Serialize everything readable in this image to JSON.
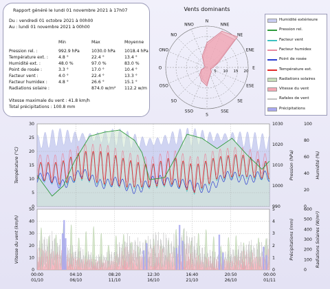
{
  "report": {
    "title": "Rapport généré le lundi 01 novembre 2021 à 17h07",
    "period_from": "Du : vendredi 01 octobre 2021 à 00h00",
    "period_to": "Au : lundi 01 novembre 2021 à 00h00",
    "col_min": "Min",
    "col_max": "Max",
    "col_avg": "Moyenne",
    "rows": [
      {
        "label": "Pression rel. :",
        "min": "992.9 hPa",
        "max": "1030.0 hPa",
        "avg": "1018.4 hPa"
      },
      {
        "label": "Température ext. :",
        "min": "4.8 °",
        "max": "22.4 °",
        "avg": "13.4 °"
      },
      {
        "label": "Humidité ext. :",
        "min": "48.0 %",
        "max": "97.0 %",
        "avg": "83.0 %"
      },
      {
        "label": "Point de rosée :",
        "min": "3.3 °",
        "max": "17.0 °",
        "avg": "10.4 °"
      },
      {
        "label": "Facteur vent :",
        "min": "4.0 °",
        "max": "22.4 °",
        "avg": "13.3 °"
      },
      {
        "label": "Facteur humidex :",
        "min": "4.8 °",
        "max": "26.6 °",
        "avg": "15.1 °"
      },
      {
        "label": "Radiations solaire :",
        "min": "",
        "max": "874.0 w/m²",
        "avg": "112.2 w/m"
      }
    ],
    "vitesse_max": "Vitesse maximale du vent : 41.8 km/h",
    "total_precip": "Total précipitations : 100.8 mm"
  },
  "wind_rose": {
    "title": "Vents dominants",
    "directions": [
      "N",
      "NNE",
      "NE",
      "ENE",
      "E",
      "ESE",
      "SE",
      "SSE",
      "S",
      "SSO",
      "SO",
      "OSO",
      "O",
      "ONO",
      "NO",
      "NNO"
    ],
    "ring_labels": [
      "5",
      "10",
      "15",
      "20"
    ],
    "vitesse_pct": [
      12,
      19,
      21,
      6,
      3,
      2,
      3,
      4,
      9,
      7,
      5,
      3,
      1,
      1,
      2,
      6
    ],
    "rafales_pct": [
      11,
      18,
      19,
      5,
      2,
      2,
      3,
      4,
      8,
      6,
      4,
      3,
      1,
      1,
      2,
      5
    ]
  },
  "legend": [
    {
      "label": "Humidité extérieure",
      "color": "#c8cdf0",
      "style": "fill"
    },
    {
      "label": "Pression rel.",
      "color": "#2e9a3c",
      "style": "line"
    },
    {
      "label": "Facteur vent",
      "color": "#3cc0c0",
      "style": "line"
    },
    {
      "label": "Facteur humidex",
      "color": "#e88aa0",
      "style": "line"
    },
    {
      "label": "Point de rosée",
      "color": "#2a3ccf",
      "style": "line"
    },
    {
      "label": "Température ext.",
      "color": "#e02828",
      "style": "line"
    },
    {
      "label": "Radiations solaires",
      "color": "#c6ddb8",
      "style": "fill"
    },
    {
      "label": "Vitesse du vent",
      "color": "#f4a8b4",
      "style": "fill"
    },
    {
      "label": "Rafales de vent",
      "color": "#c0c0c0",
      "style": "line"
    },
    {
      "label": "Précipitations",
      "color": "#a8a8f0",
      "style": "fill"
    }
  ],
  "chart_data": [
    {
      "type": "line",
      "title": "",
      "xlabel": "",
      "ylabel": "Température (°C)",
      "y2label": "Pression (hPa)",
      "y3label": "Humidité (%)",
      "ylim": [
        0,
        30
      ],
      "y2lim": [
        990,
        1030
      ],
      "y3lim": [
        0,
        100
      ],
      "yticks": [
        "0",
        "5",
        "10",
        "15",
        "20",
        "25",
        "30"
      ],
      "y2ticks": [
        "990",
        "1000",
        "1010",
        "1020",
        "1030"
      ],
      "y3ticks": [
        "0",
        "20",
        "40",
        "60",
        "80",
        "100"
      ],
      "x_tick_labels": [
        [
          "00:00",
          "01/10"
        ],
        [
          "04:10",
          "06/10"
        ],
        [
          "08:20",
          "11/10"
        ],
        [
          "12:30",
          "16/10"
        ],
        [
          "16:40",
          "21/10"
        ],
        [
          "20:50",
          "26/10"
        ],
        [
          "00:00",
          "01/11"
        ]
      ],
      "x_days": [
        0,
        31
      ],
      "pressure_daily": {
        "x": [
          0,
          2,
          3.5,
          5,
          7,
          9,
          11,
          13,
          14,
          15,
          17,
          18.5,
          20,
          22,
          24,
          26,
          28,
          30,
          31
        ],
        "values": [
          1005,
          995,
          1000,
          1012,
          1024,
          1026,
          1027,
          1022,
          1016,
          1003,
          1004,
          1014,
          1025,
          1023,
          1018,
          1023,
          1015,
          1008,
          1012
        ]
      },
      "temperature_daily": {
        "x": [
          0,
          3,
          6,
          9,
          12,
          15,
          18,
          21,
          24,
          27,
          31
        ],
        "mean": [
          13,
          12,
          15,
          14,
          12,
          11,
          13,
          10,
          14,
          15,
          13
        ],
        "amplitude": [
          3,
          4,
          5,
          6,
          5,
          4,
          5,
          5,
          4,
          4,
          3
        ]
      },
      "dewpoint_daily": {
        "x": [
          0,
          3,
          6,
          9,
          12,
          15,
          18,
          21,
          24,
          27,
          31
        ],
        "mean": [
          10,
          9,
          11,
          9,
          7,
          8,
          10,
          6,
          9,
          11,
          10
        ]
      },
      "humidity_range": [
        48,
        97
      ]
    },
    {
      "type": "bar",
      "title": "",
      "xlabel": "",
      "ylabel": "Vitesse du vent (km/h)",
      "y2label": "Précipitations (mm)",
      "y3label": "Radiations Solaires (W/m²)",
      "ylim": [
        0,
        50
      ],
      "y2lim": [
        0,
        5
      ],
      "y3lim": [
        0,
        600
      ],
      "yticks": [
        "0",
        "10",
        "20",
        "30",
        "40",
        "50"
      ],
      "y2ticks": [
        "0",
        "1",
        "2",
        "3",
        "4",
        "5"
      ],
      "y3ticks": [
        "0",
        "100",
        "200",
        "300",
        "400",
        "500",
        "600"
      ],
      "wind_daily_max": {
        "x": [
          0,
          2,
          4,
          6,
          8,
          10,
          12,
          14,
          16,
          18,
          20,
          22,
          24,
          26,
          28,
          30,
          31
        ],
        "values": [
          32,
          38,
          26,
          22,
          15,
          20,
          36,
          30,
          40,
          34,
          42,
          24,
          18,
          22,
          30,
          28,
          35
        ]
      },
      "solar_daily_max": {
        "x": [
          0,
          5,
          10,
          15,
          20,
          25,
          31
        ],
        "values": [
          420,
          480,
          380,
          300,
          450,
          350,
          320
        ]
      },
      "rain_days": [
        {
          "day": 3.4,
          "mm": 3.0
        },
        {
          "day": 3.6,
          "mm": 4.1
        },
        {
          "day": 3.8,
          "mm": 2.6
        },
        {
          "day": 14.2,
          "mm": 1.6
        },
        {
          "day": 14.6,
          "mm": 2.2
        },
        {
          "day": 18.6,
          "mm": 1.8
        },
        {
          "day": 19.0,
          "mm": 3.7
        },
        {
          "day": 19.4,
          "mm": 2.4
        },
        {
          "day": 24.3,
          "mm": 2.9
        },
        {
          "day": 24.8,
          "mm": 1.4
        },
        {
          "day": 30.2,
          "mm": 1.9
        },
        {
          "day": 30.6,
          "mm": 1.2
        }
      ]
    }
  ]
}
